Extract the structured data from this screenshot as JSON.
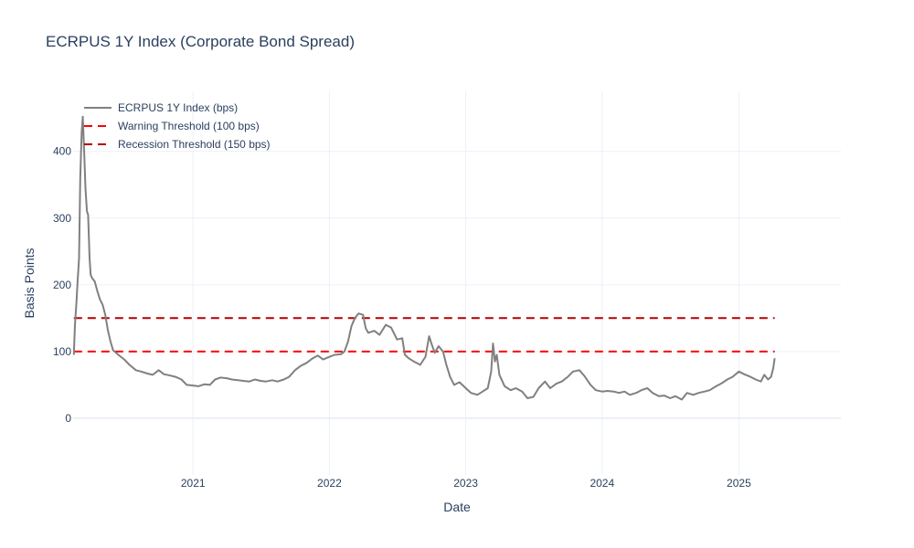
{
  "chart_data": {
    "type": "line",
    "title": "ECRPUS 1Y Index (Corporate Bond Spread)",
    "xlabel": "Date",
    "ylabel": "Basis Points",
    "x_tick_labels": [
      "2021",
      "2022",
      "2023",
      "2024",
      "2025"
    ],
    "y_ticks": [
      0,
      100,
      200,
      300,
      400
    ],
    "xlim": [
      "2020-02-15",
      "2025-10-01"
    ],
    "ylim": [
      -85,
      490
    ],
    "grid": true,
    "legend_position": "top-left",
    "series": [
      {
        "name": "ECRPUS 1Y Index (bps)",
        "color": "#808080",
        "dash": "solid",
        "points": [
          [
            "2020-02-17",
            95
          ],
          [
            "2020-02-20",
            140
          ],
          [
            "2020-02-24",
            175
          ],
          [
            "2020-02-27",
            205
          ],
          [
            "2020-03-02",
            240
          ],
          [
            "2020-03-05",
            360
          ],
          [
            "2020-03-09",
            430
          ],
          [
            "2020-03-12",
            452
          ],
          [
            "2020-03-16",
            392
          ],
          [
            "2020-03-19",
            345
          ],
          [
            "2020-03-23",
            310
          ],
          [
            "2020-03-26",
            305
          ],
          [
            "2020-03-30",
            240
          ],
          [
            "2020-04-02",
            215
          ],
          [
            "2020-04-06",
            210
          ],
          [
            "2020-04-13",
            205
          ],
          [
            "2020-04-20",
            190
          ],
          [
            "2020-04-27",
            178
          ],
          [
            "2020-05-04",
            170
          ],
          [
            "2020-05-11",
            155
          ],
          [
            "2020-05-18",
            132
          ],
          [
            "2020-05-25",
            115
          ],
          [
            "2020-06-01",
            102
          ],
          [
            "2020-06-15",
            95
          ],
          [
            "2020-07-01",
            88
          ],
          [
            "2020-07-15",
            80
          ],
          [
            "2020-08-01",
            72
          ],
          [
            "2020-08-15",
            70
          ],
          [
            "2020-09-01",
            67
          ],
          [
            "2020-09-15",
            65
          ],
          [
            "2020-10-01",
            72
          ],
          [
            "2020-10-15",
            66
          ],
          [
            "2020-11-01",
            64
          ],
          [
            "2020-11-15",
            62
          ],
          [
            "2020-12-01",
            58
          ],
          [
            "2020-12-15",
            50
          ],
          [
            "2021-01-01",
            49
          ],
          [
            "2021-01-15",
            48
          ],
          [
            "2021-02-01",
            51
          ],
          [
            "2021-02-15",
            50
          ],
          [
            "2021-03-01",
            58
          ],
          [
            "2021-03-15",
            61
          ],
          [
            "2021-04-01",
            60
          ],
          [
            "2021-04-15",
            58
          ],
          [
            "2021-05-01",
            57
          ],
          [
            "2021-05-15",
            56
          ],
          [
            "2021-06-01",
            55
          ],
          [
            "2021-06-15",
            58
          ],
          [
            "2021-07-01",
            56
          ],
          [
            "2021-07-15",
            55
          ],
          [
            "2021-08-01",
            57
          ],
          [
            "2021-08-15",
            55
          ],
          [
            "2021-09-01",
            58
          ],
          [
            "2021-09-15",
            62
          ],
          [
            "2021-10-01",
            72
          ],
          [
            "2021-10-15",
            78
          ],
          [
            "2021-11-01",
            83
          ],
          [
            "2021-11-15",
            89
          ],
          [
            "2021-12-01",
            94
          ],
          [
            "2021-12-15",
            88
          ],
          [
            "2022-01-01",
            92
          ],
          [
            "2022-01-15",
            95
          ],
          [
            "2022-02-01",
            96
          ],
          [
            "2022-02-10",
            100
          ],
          [
            "2022-02-20",
            115
          ],
          [
            "2022-03-01",
            138
          ],
          [
            "2022-03-10",
            150
          ],
          [
            "2022-03-20",
            157
          ],
          [
            "2022-04-01",
            155
          ],
          [
            "2022-04-08",
            135
          ],
          [
            "2022-04-15",
            128
          ],
          [
            "2022-05-01",
            131
          ],
          [
            "2022-05-15",
            125
          ],
          [
            "2022-06-01",
            140
          ],
          [
            "2022-06-15",
            136
          ],
          [
            "2022-07-01",
            118
          ],
          [
            "2022-07-15",
            120
          ],
          [
            "2022-07-22",
            95
          ],
          [
            "2022-08-01",
            90
          ],
          [
            "2022-08-15",
            85
          ],
          [
            "2022-09-01",
            80
          ],
          [
            "2022-09-15",
            92
          ],
          [
            "2022-09-25",
            123
          ],
          [
            "2022-10-01",
            112
          ],
          [
            "2022-10-10",
            98
          ],
          [
            "2022-10-20",
            108
          ],
          [
            "2022-11-01",
            100
          ],
          [
            "2022-11-10",
            80
          ],
          [
            "2022-11-20",
            62
          ],
          [
            "2022-12-01",
            50
          ],
          [
            "2022-12-15",
            54
          ],
          [
            "2023-01-01",
            45
          ],
          [
            "2023-01-15",
            38
          ],
          [
            "2023-02-01",
            35
          ],
          [
            "2023-02-15",
            40
          ],
          [
            "2023-03-01",
            45
          ],
          [
            "2023-03-10",
            70
          ],
          [
            "2023-03-15",
            112
          ],
          [
            "2023-03-20",
            85
          ],
          [
            "2023-03-25",
            95
          ],
          [
            "2023-04-01",
            65
          ],
          [
            "2023-04-15",
            48
          ],
          [
            "2023-05-01",
            42
          ],
          [
            "2023-05-15",
            45
          ],
          [
            "2023-06-01",
            40
          ],
          [
            "2023-06-15",
            30
          ],
          [
            "2023-07-01",
            32
          ],
          [
            "2023-07-15",
            45
          ],
          [
            "2023-08-01",
            55
          ],
          [
            "2023-08-15",
            45
          ],
          [
            "2023-09-01",
            52
          ],
          [
            "2023-09-15",
            55
          ],
          [
            "2023-10-01",
            62
          ],
          [
            "2023-10-15",
            70
          ],
          [
            "2023-11-01",
            72
          ],
          [
            "2023-11-15",
            63
          ],
          [
            "2023-12-01",
            50
          ],
          [
            "2023-12-15",
            42
          ],
          [
            "2024-01-01",
            40
          ],
          [
            "2024-01-15",
            41
          ],
          [
            "2024-02-01",
            40
          ],
          [
            "2024-02-15",
            38
          ],
          [
            "2024-03-01",
            40
          ],
          [
            "2024-03-15",
            35
          ],
          [
            "2024-04-01",
            38
          ],
          [
            "2024-04-15",
            42
          ],
          [
            "2024-05-01",
            45
          ],
          [
            "2024-05-15",
            38
          ],
          [
            "2024-06-01",
            33
          ],
          [
            "2024-06-15",
            34
          ],
          [
            "2024-07-01",
            30
          ],
          [
            "2024-07-15",
            33
          ],
          [
            "2024-08-01",
            28
          ],
          [
            "2024-08-15",
            38
          ],
          [
            "2024-09-01",
            35
          ],
          [
            "2024-09-15",
            38
          ],
          [
            "2024-10-01",
            40
          ],
          [
            "2024-10-15",
            42
          ],
          [
            "2024-11-01",
            48
          ],
          [
            "2024-11-15",
            52
          ],
          [
            "2024-12-01",
            58
          ],
          [
            "2024-12-15",
            62
          ],
          [
            "2025-01-01",
            70
          ],
          [
            "2025-01-15",
            66
          ],
          [
            "2025-02-01",
            62
          ],
          [
            "2025-02-15",
            58
          ],
          [
            "2025-03-01",
            55
          ],
          [
            "2025-03-10",
            65
          ],
          [
            "2025-03-20",
            58
          ],
          [
            "2025-03-28",
            62
          ],
          [
            "2025-04-03",
            75
          ],
          [
            "2025-04-07",
            90
          ]
        ]
      },
      {
        "name": "Warning Threshold (100 bps)",
        "color": "#ff0000",
        "dash": "dashed",
        "points": [
          [
            "2020-02-17",
            100
          ],
          [
            "2025-04-07",
            100
          ]
        ]
      },
      {
        "name": "Recession Threshold (150 bps)",
        "color": "#b30000",
        "dash": "dashed",
        "points": [
          [
            "2020-02-17",
            150
          ],
          [
            "2025-04-07",
            150
          ]
        ]
      }
    ]
  }
}
